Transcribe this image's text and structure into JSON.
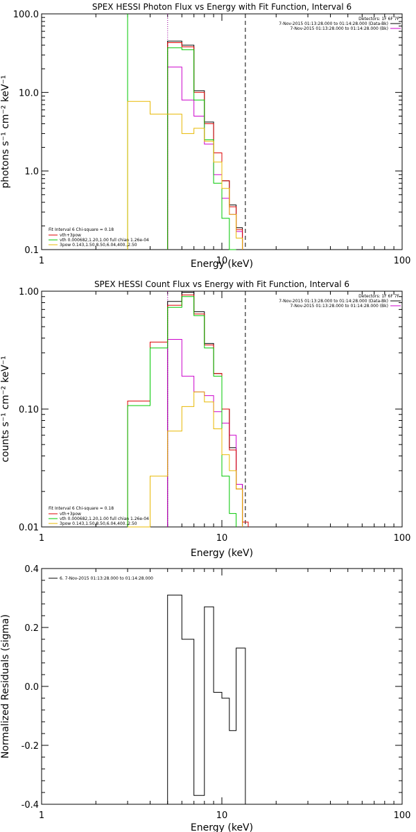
{
  "chart_data": [
    {
      "type": "line",
      "title": "SPEX HESSI Photon Flux vs Energy with Fit Function, Interval 6",
      "xlabel": "Energy (keV)",
      "ylabel": "photons s⁻¹ cm⁻² keV⁻¹",
      "xscale": "log",
      "yscale": "log",
      "xlim": [
        1,
        100
      ],
      "ylim": [
        0.1,
        100
      ],
      "x_ticks": [
        "1",
        "10",
        "100"
      ],
      "y_ticks": [
        "0.1",
        "1.0",
        "10.0",
        "100.0"
      ],
      "header": {
        "detectors": "Detectors: 1F 6F 7F",
        "line1": "7-Nov-2015 01:13:28.000 to 01:14:28.000 (Data-Bk)",
        "line2": "7-Nov-2015 01:13:28.000 to 01:14:28.000 (Bk)"
      },
      "fit_legend": {
        "title": "Fit Interval 6   Chi-square = 0.18",
        "entries": [
          "vth+3pow",
          "vth 0.000682,1.20,1.00  full chian 1.26e-04",
          "3pow 0.143,1.50,8.50,6.04,400.,2.50"
        ]
      },
      "vlines": [
        {
          "x": 3.0,
          "style": "solid",
          "color": "#00c800"
        },
        {
          "x": 5.0,
          "style": "dotted",
          "color": "#00c800"
        },
        {
          "x": 5.0,
          "style": "dotted",
          "color": "#cc00cc"
        },
        {
          "x": 13.5,
          "style": "dashed",
          "color": "#000000"
        }
      ],
      "energy_bins": [
        3.0,
        4.0,
        5.0,
        6.0,
        7.0,
        8.0,
        9.0,
        10.0,
        11.0,
        12.0,
        13.0,
        14.0
      ],
      "series": [
        {
          "name": "Data-Bk",
          "color": "#000000",
          "values": [
            null,
            null,
            45,
            40,
            10.5,
            4.2,
            1.7,
            0.75,
            0.37,
            0.19,
            null
          ]
        },
        {
          "name": "Bk",
          "color": "#cc00cc",
          "values": [
            null,
            null,
            21,
            8,
            5,
            2.2,
            0.9,
            0.45,
            0.28,
            0.17,
            null
          ]
        },
        {
          "name": "vth+3pow",
          "color": "#dd0000",
          "values": [
            null,
            null,
            43,
            38,
            10,
            4.0,
            1.7,
            0.75,
            0.35,
            0.18,
            null
          ]
        },
        {
          "name": "vth",
          "color": "#00c800",
          "values": [
            null,
            null,
            37,
            35,
            8,
            2.5,
            0.7,
            0.25,
            0.08,
            null,
            null
          ]
        },
        {
          "name": "3pow",
          "color": "#e8b800",
          "values": [
            7.7,
            5.3,
            5.3,
            3.0,
            3.5,
            2.4,
            1.3,
            0.6,
            0.28,
            0.14,
            null
          ]
        }
      ]
    },
    {
      "type": "line",
      "title": "SPEX HESSI Count Flux vs Energy with Fit Function, Interval 6",
      "xlabel": "Energy (keV)",
      "ylabel": "counts s⁻¹ cm⁻² keV⁻¹",
      "xscale": "log",
      "yscale": "log",
      "xlim": [
        1,
        100
      ],
      "ylim": [
        0.01,
        1.0
      ],
      "x_ticks": [
        "1",
        "10",
        "100"
      ],
      "y_ticks": [
        "0.01",
        "0.10",
        "1.00"
      ],
      "header": {
        "detectors": "Detectors: 1F 6F 7F",
        "line1": "7-Nov-2015 01:13:28.000 to 01:14:28.000 (Data-Bk)",
        "line2": "7-Nov-2015 01:13:28.000 to 01:14:28.000 (Bk)"
      },
      "fit_legend": {
        "title": "Fit Interval 6   Chi-square = 0.18",
        "entries": [
          "vth+3pow",
          "vth 0.000682,1.20,1.00  full chian 1.26e-04",
          "3pow 0.143,1.50,8.50,6.04,400.,2.50"
        ]
      },
      "vlines": [
        {
          "x": 5.0,
          "style": "dotted",
          "color": "#000000"
        },
        {
          "x": 5.0,
          "style": "dotted",
          "color": "#cc00cc"
        },
        {
          "x": 13.5,
          "style": "dashed",
          "color": "#000000"
        }
      ],
      "energy_bins": [
        3.0,
        4.0,
        5.0,
        6.0,
        7.0,
        8.0,
        9.0,
        10.0,
        11.0,
        12.0,
        13.0,
        14.0
      ],
      "series": [
        {
          "name": "Data-Bk",
          "color": "#000000",
          "values": [
            null,
            null,
            0.82,
            0.98,
            0.67,
            0.36,
            0.2,
            0.1,
            0.047,
            0.023,
            null
          ]
        },
        {
          "name": "Bk",
          "color": "#cc00cc",
          "values": [
            null,
            null,
            0.39,
            0.19,
            0.14,
            0.13,
            0.095,
            0.076,
            0.06,
            0.023,
            null
          ]
        },
        {
          "name": "vth+3pow",
          "color": "#dd0000",
          "values": [
            0.117,
            0.37,
            0.76,
            0.93,
            0.64,
            0.35,
            0.2,
            0.1,
            0.045,
            0.021,
            0.011
          ]
        },
        {
          "name": "vth",
          "color": "#00c800",
          "values": [
            0.107,
            0.33,
            0.73,
            0.9,
            0.62,
            0.33,
            0.19,
            0.027,
            0.013,
            null,
            null
          ]
        },
        {
          "name": "3pow",
          "color": "#e8b800",
          "values": [
            0.001,
            0.027,
            0.065,
            0.105,
            0.14,
            0.115,
            0.068,
            0.041,
            0.03,
            0.021,
            null
          ]
        }
      ]
    },
    {
      "type": "line",
      "title": "",
      "xlabel": "Energy (keV)",
      "ylabel": "Normalized Residuals (sigma)",
      "xscale": "log",
      "yscale": "linear",
      "xlim": [
        1,
        100
      ],
      "ylim": [
        -0.4,
        0.4
      ],
      "x_ticks": [
        "1",
        "10",
        "100"
      ],
      "y_ticks": [
        "-0.4",
        "-0.2",
        "0.0",
        "0.2",
        "0.4"
      ],
      "legend": "6.  7-Nov-2015 01:13:28.000 to 01:14:28.000",
      "energy_bins": [
        5.0,
        6.0,
        7.0,
        8.0,
        9.0,
        10.0,
        11.0,
        12.0,
        13.5
      ],
      "series": [
        {
          "name": "6.  7-Nov-2015 01:13:28.000 to 01:14:28.000",
          "color": "#000000",
          "values": [
            0.31,
            0.16,
            -0.37,
            0.27,
            -0.02,
            -0.04,
            -0.15,
            0.13
          ]
        }
      ]
    }
  ]
}
